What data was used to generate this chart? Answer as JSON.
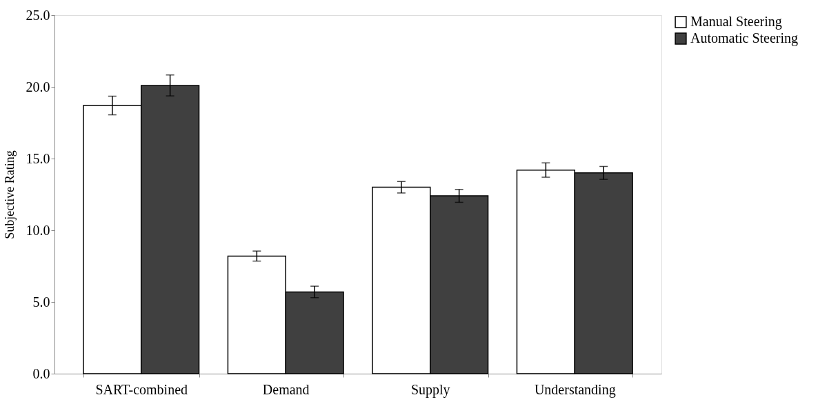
{
  "chart_data": {
    "type": "bar",
    "ylabel": "Subjective Rating",
    "categories": [
      "SART-combined",
      "Demand",
      "Supply",
      "Understanding"
    ],
    "series": [
      {
        "name": "Manual Steering",
        "color": "#ffffff",
        "values": [
          18.7,
          8.2,
          13.0,
          14.2
        ],
        "errors": [
          0.65,
          0.35,
          0.4,
          0.5
        ]
      },
      {
        "name": "Automatic Steering",
        "color": "#404040",
        "values": [
          20.1,
          5.7,
          12.4,
          14.0
        ],
        "errors": [
          0.73,
          0.4,
          0.45,
          0.45
        ]
      }
    ],
    "ylim": [
      0,
      25
    ],
    "yticks": [
      {
        "value": 0,
        "label": "0.0"
      },
      {
        "value": 5,
        "label": "5.0"
      },
      {
        "value": 10,
        "label": "10.0"
      },
      {
        "value": 15,
        "label": "15.0"
      },
      {
        "value": 20,
        "label": "20.0"
      },
      {
        "value": 25,
        "label": "25.0"
      }
    ],
    "grid": false,
    "legend": "right"
  }
}
